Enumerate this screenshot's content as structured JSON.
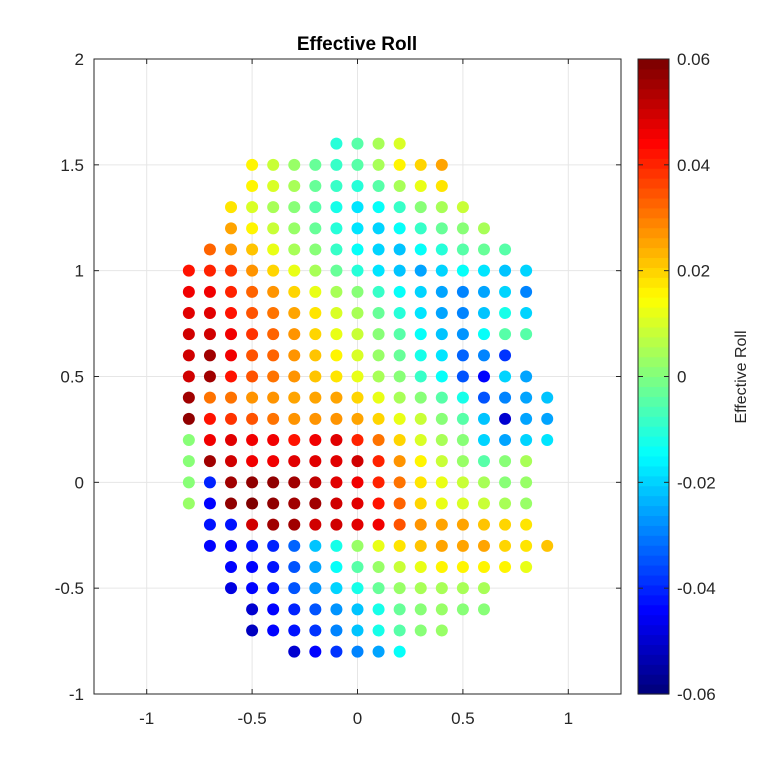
{
  "chart_data": {
    "type": "scatter",
    "title": "Effective Roll",
    "xlim": [
      -1.25,
      1.25
    ],
    "ylim": [
      -1,
      2
    ],
    "x_ticks": [
      -1,
      -0.5,
      0,
      0.5,
      1
    ],
    "x_tick_labels": [
      "-1",
      "-0.5",
      "0",
      "0.5",
      "1"
    ],
    "y_ticks": [
      -1,
      -0.5,
      0,
      0.5,
      1,
      1.5,
      2
    ],
    "y_tick_labels": [
      "-1",
      "-0.5",
      "0",
      "0.5",
      "1",
      "1.5",
      "2"
    ],
    "grid": true,
    "colormap": "jet",
    "colorbar": {
      "label": "Effective Roll",
      "clim": [
        -0.06,
        0.06
      ],
      "ticks": [
        -0.06,
        -0.04,
        -0.02,
        0,
        0.02,
        0.04,
        0.06
      ],
      "tick_labels": [
        "-0.06",
        "-0.04",
        "-0.02",
        "0",
        "0.02",
        "0.04",
        "0.06"
      ]
    },
    "grid_step": 0.1,
    "rows": [
      {
        "y": 1.6,
        "x_start": -0.1,
        "values": [
          -0.01,
          -0.005,
          0.005,
          0.01
        ]
      },
      {
        "y": 1.5,
        "x_start": -0.5,
        "values": [
          0.015,
          0.008,
          0.003,
          -0.003,
          -0.008,
          -0.005,
          0.005,
          0.015,
          0.02,
          0.025
        ]
      },
      {
        "y": 1.4,
        "x_start": -0.5,
        "values": [
          0.015,
          0.01,
          0.005,
          -0.003,
          -0.008,
          -0.01,
          -0.005,
          0.005,
          0.012,
          0.018
        ]
      },
      {
        "y": 1.3,
        "x_start": -0.6,
        "values": [
          0.018,
          0.01,
          0.005,
          0.0,
          -0.005,
          -0.012,
          -0.018,
          -0.015,
          -0.008,
          0.0,
          0.005,
          0.008
        ]
      },
      {
        "y": 1.2,
        "x_start": -0.6,
        "values": [
          0.025,
          0.015,
          0.008,
          0.003,
          -0.003,
          -0.01,
          -0.018,
          -0.02,
          -0.015,
          -0.008,
          -0.003,
          0.0,
          0.005
        ]
      },
      {
        "y": 1.1,
        "x_start": -0.7,
        "values": [
          0.032,
          0.028,
          0.022,
          0.012,
          0.005,
          0.0,
          -0.008,
          -0.015,
          -0.02,
          -0.022,
          -0.015,
          -0.01,
          -0.005,
          -0.002,
          -0.005
        ]
      },
      {
        "y": 1.0,
        "x_start": -0.8,
        "values": [
          0.042,
          0.04,
          0.038,
          0.028,
          0.02,
          0.012,
          0.005,
          -0.003,
          -0.01,
          -0.018,
          -0.022,
          -0.025,
          -0.02,
          -0.015,
          -0.018,
          -0.022,
          -0.02
        ]
      },
      {
        "y": 0.9,
        "x_start": -0.8,
        "values": [
          0.045,
          0.045,
          0.04,
          0.032,
          0.028,
          0.02,
          0.012,
          0.005,
          0.0,
          -0.008,
          -0.015,
          -0.02,
          -0.025,
          -0.03,
          -0.025,
          -0.02,
          -0.03
        ]
      },
      {
        "y": 0.8,
        "x_start": -0.8,
        "values": [
          0.047,
          0.047,
          0.042,
          0.035,
          0.03,
          0.025,
          0.018,
          0.01,
          0.005,
          -0.003,
          -0.01,
          -0.018,
          -0.025,
          -0.03,
          -0.022,
          -0.012,
          -0.02
        ]
      },
      {
        "y": 0.7,
        "x_start": -0.8,
        "values": [
          0.05,
          0.05,
          0.045,
          0.038,
          0.032,
          0.028,
          0.02,
          0.012,
          0.008,
          0.0,
          -0.005,
          -0.015,
          -0.022,
          -0.028,
          -0.015,
          -0.005,
          -0.005
        ]
      },
      {
        "y": 0.6,
        "x_start": -0.8,
        "values": [
          0.05,
          0.055,
          0.045,
          0.035,
          0.032,
          0.028,
          0.022,
          0.015,
          0.01,
          0.003,
          -0.003,
          -0.012,
          -0.018,
          -0.032,
          -0.03,
          -0.038
        ]
      },
      {
        "y": 0.5,
        "x_start": -0.8,
        "values": [
          0.05,
          0.055,
          0.042,
          0.035,
          0.03,
          0.028,
          0.022,
          0.018,
          0.012,
          0.005,
          0.0,
          -0.008,
          -0.015,
          -0.035,
          -0.045,
          -0.02,
          -0.025
        ]
      },
      {
        "y": 0.4,
        "x_start": -0.8,
        "values": [
          0.055,
          0.03,
          0.03,
          0.028,
          0.028,
          0.025,
          0.025,
          0.025,
          0.02,
          0.012,
          0.005,
          0.0,
          -0.005,
          -0.012,
          -0.035,
          -0.03,
          -0.025,
          -0.022
        ]
      },
      {
        "y": 0.3,
        "x_start": -0.8,
        "values": [
          0.058,
          0.042,
          0.038,
          0.035,
          0.03,
          0.028,
          0.028,
          0.028,
          0.025,
          0.02,
          0.012,
          0.008,
          0.0,
          -0.005,
          -0.022,
          -0.05,
          -0.025,
          -0.025
        ]
      },
      {
        "y": 0.2,
        "x_start": -0.8,
        "values": [
          0.0,
          0.045,
          0.048,
          0.045,
          0.045,
          0.042,
          0.045,
          0.048,
          0.04,
          0.03,
          0.02,
          0.01,
          0.005,
          0.0,
          -0.02,
          -0.025,
          -0.02,
          -0.018
        ]
      },
      {
        "y": 0.1,
        "x_start": -0.8,
        "values": [
          0.0,
          0.055,
          0.05,
          0.045,
          0.045,
          0.048,
          0.048,
          0.048,
          0.05,
          0.04,
          0.028,
          0.015,
          0.008,
          0.003,
          -0.005,
          0.0,
          0.005
        ]
      },
      {
        "y": 0.0,
        "x_start": -0.8,
        "values": [
          0.0,
          -0.04,
          0.055,
          0.058,
          0.058,
          0.055,
          0.052,
          0.048,
          0.045,
          0.04,
          0.03,
          0.018,
          0.012,
          0.008,
          0.005,
          0.0,
          0.003
        ]
      },
      {
        "y": -0.1,
        "x_start": -0.8,
        "values": [
          0.003,
          -0.045,
          0.058,
          0.06,
          0.058,
          0.055,
          0.055,
          0.05,
          0.048,
          0.042,
          0.032,
          0.02,
          0.012,
          0.01,
          0.008,
          0.005,
          0.003
        ]
      },
      {
        "y": -0.2,
        "x_start": -0.7,
        "values": [
          -0.042,
          -0.042,
          0.05,
          0.055,
          0.055,
          0.05,
          0.05,
          0.048,
          0.045,
          0.035,
          0.028,
          0.025,
          0.025,
          0.022,
          0.02,
          0.018
        ]
      },
      {
        "y": -0.3,
        "x_start": -0.7,
        "values": [
          -0.045,
          -0.045,
          -0.042,
          -0.04,
          -0.032,
          -0.022,
          -0.012,
          0.002,
          0.012,
          0.018,
          0.022,
          0.025,
          0.025,
          0.025,
          0.02,
          0.018,
          0.022
        ]
      },
      {
        "y": -0.4,
        "x_start": -0.6,
        "values": [
          -0.045,
          -0.045,
          -0.042,
          -0.035,
          -0.025,
          -0.015,
          -0.005,
          0.003,
          0.008,
          0.012,
          0.015,
          0.015,
          0.015,
          0.015,
          0.012
        ]
      },
      {
        "y": -0.5,
        "x_start": -0.6,
        "values": [
          -0.048,
          -0.045,
          -0.042,
          -0.035,
          -0.028,
          -0.02,
          -0.012,
          -0.003,
          0.002,
          0.005,
          0.005,
          0.005,
          0.005
        ]
      },
      {
        "y": -0.6,
        "x_start": -0.5,
        "values": [
          -0.05,
          -0.045,
          -0.04,
          -0.035,
          -0.028,
          -0.022,
          -0.012,
          -0.003,
          0.0,
          0.002,
          0.0,
          0.0
        ]
      },
      {
        "y": -0.7,
        "x_start": -0.5,
        "values": [
          -0.052,
          -0.045,
          -0.042,
          -0.038,
          -0.03,
          -0.022,
          -0.012,
          -0.005,
          0.0,
          0.002
        ]
      },
      {
        "y": -0.8,
        "x_start": -0.3,
        "values": [
          -0.05,
          -0.045,
          -0.038,
          -0.03,
          -0.025,
          -0.015
        ]
      }
    ]
  },
  "colors": {
    "axis": "#262626",
    "grid": "#e6e6e6",
    "title": "#000000"
  }
}
